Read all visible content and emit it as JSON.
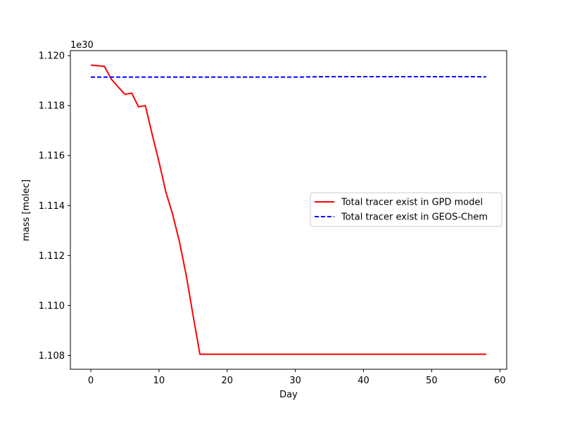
{
  "chart_data": {
    "type": "line",
    "xlabel": "Day",
    "ylabel": "mass [molec]",
    "y_offset_label": "1e30",
    "xlim": [
      -3,
      61
    ],
    "ylim": [
      1.10745,
      1.1202
    ],
    "x_ticks": [
      0,
      10,
      20,
      30,
      40,
      50,
      60
    ],
    "y_ticks": [
      1.108,
      1.11,
      1.112,
      1.114,
      1.116,
      1.118,
      1.12
    ],
    "y_tick_labels": [
      "1.108",
      "1.110",
      "1.112",
      "1.114",
      "1.116",
      "1.118",
      "1.120"
    ],
    "grid": false,
    "legend_position": "center-right",
    "series": [
      {
        "name": "Total tracer exist in GPD model",
        "color": "#ff0000",
        "style": "solid",
        "x": [
          0,
          1,
          2,
          3,
          4,
          5,
          6,
          7,
          8,
          9,
          10,
          11,
          12,
          13,
          14,
          15,
          16,
          17,
          20,
          25,
          30,
          35,
          40,
          45,
          50,
          55,
          58
        ],
        "y": [
          1.11962,
          1.1196,
          1.11957,
          1.11906,
          1.11875,
          1.11845,
          1.1185,
          1.11795,
          1.118,
          1.11685,
          1.11575,
          1.11455,
          1.11365,
          1.11255,
          1.1112,
          1.1096,
          1.10805,
          1.10805,
          1.10805,
          1.10805,
          1.10805,
          1.10805,
          1.10805,
          1.10805,
          1.10805,
          1.10805,
          1.10805
        ]
      },
      {
        "name": "Total tracer exist in GEOS-Chem",
        "color": "#0000ff",
        "style": "dashed",
        "x": [
          0,
          5,
          10,
          15,
          20,
          25,
          30,
          35,
          40,
          45,
          50,
          55,
          58
        ],
        "y": [
          1.11914,
          1.11914,
          1.11914,
          1.11914,
          1.11914,
          1.11914,
          1.11914,
          1.11916,
          1.11916,
          1.11916,
          1.11916,
          1.11916,
          1.11915
        ]
      }
    ]
  }
}
